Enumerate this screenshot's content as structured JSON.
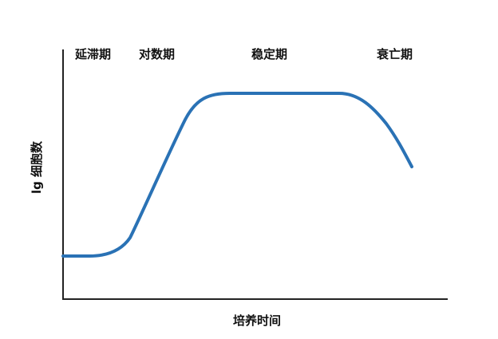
{
  "phases": {
    "lag": "延滞期",
    "log": "对数期",
    "stationary": "稳定期",
    "death": "衰亡期"
  },
  "axes": {
    "y_title": "lg 细胞数",
    "x_title": "培养时间"
  },
  "colors": {
    "curve": "#2a72b5",
    "axis": "#222222",
    "text": "#111111"
  }
}
